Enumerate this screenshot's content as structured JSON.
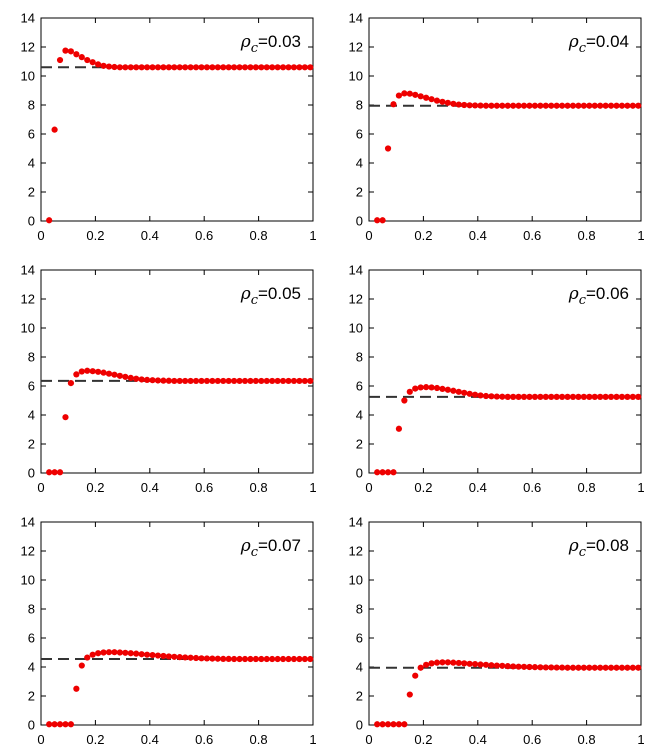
{
  "chart_data": [
    {
      "type": "scatter",
      "label_symbol": "ρ",
      "label_sub": "c",
      "label_value": "=0.03",
      "xlim": [
        0,
        1
      ],
      "ylim": [
        0,
        14
      ],
      "xticks": [
        "0",
        "0.2",
        "0.4",
        "0.6",
        "0.8",
        "1"
      ],
      "yticks": [
        "0",
        "2",
        "4",
        "6",
        "8",
        "10",
        "12",
        "14"
      ],
      "reference_line": 10.6,
      "x": [
        0.03,
        0.05,
        0.07,
        0.09,
        0.11,
        0.13,
        0.15,
        0.17,
        0.19,
        0.21,
        0.23,
        0.25,
        0.27,
        0.29,
        0.31,
        0.33,
        0.35,
        0.37,
        0.39,
        0.41,
        0.43,
        0.45,
        0.47,
        0.49,
        0.51,
        0.53,
        0.55,
        0.57,
        0.59,
        0.61,
        0.63,
        0.65,
        0.67,
        0.69,
        0.71,
        0.73,
        0.75,
        0.77,
        0.79,
        0.81,
        0.83,
        0.85,
        0.87,
        0.89,
        0.91,
        0.93,
        0.95,
        0.97,
        0.99
      ],
      "y": [
        0.05,
        6.3,
        11.1,
        11.75,
        11.7,
        11.5,
        11.3,
        11.1,
        10.95,
        10.8,
        10.7,
        10.65,
        10.62,
        10.6,
        10.6,
        10.6,
        10.6,
        10.6,
        10.6,
        10.6,
        10.6,
        10.6,
        10.6,
        10.6,
        10.6,
        10.6,
        10.6,
        10.6,
        10.6,
        10.6,
        10.6,
        10.6,
        10.6,
        10.6,
        10.6,
        10.6,
        10.6,
        10.6,
        10.6,
        10.6,
        10.6,
        10.6,
        10.6,
        10.6,
        10.6,
        10.6,
        10.6,
        10.6,
        10.6
      ],
      "colors": {
        "points": "#ee0000",
        "reference_line": "#333333"
      }
    },
    {
      "type": "scatter",
      "label_symbol": "ρ",
      "label_sub": "c",
      "label_value": "=0.04",
      "xlim": [
        0,
        1
      ],
      "ylim": [
        0,
        14
      ],
      "xticks": [
        "0",
        "0.2",
        "0.4",
        "0.6",
        "0.8",
        "1"
      ],
      "yticks": [
        "0",
        "2",
        "4",
        "6",
        "8",
        "10",
        "12",
        "14"
      ],
      "reference_line": 7.95,
      "x": [
        0.03,
        0.05,
        0.07,
        0.09,
        0.11,
        0.13,
        0.15,
        0.17,
        0.19,
        0.21,
        0.23,
        0.25,
        0.27,
        0.29,
        0.31,
        0.33,
        0.35,
        0.37,
        0.39,
        0.41,
        0.43,
        0.45,
        0.47,
        0.49,
        0.51,
        0.53,
        0.55,
        0.57,
        0.59,
        0.61,
        0.63,
        0.65,
        0.67,
        0.69,
        0.71,
        0.73,
        0.75,
        0.77,
        0.79,
        0.81,
        0.83,
        0.85,
        0.87,
        0.89,
        0.91,
        0.93,
        0.95,
        0.97,
        0.99
      ],
      "y": [
        0.05,
        0.05,
        5.0,
        8.05,
        8.65,
        8.8,
        8.78,
        8.7,
        8.6,
        8.5,
        8.4,
        8.3,
        8.22,
        8.15,
        8.08,
        8.03,
        8.0,
        7.98,
        7.97,
        7.96,
        7.95,
        7.95,
        7.95,
        7.95,
        7.95,
        7.95,
        7.95,
        7.95,
        7.95,
        7.95,
        7.95,
        7.95,
        7.95,
        7.95,
        7.95,
        7.95,
        7.95,
        7.95,
        7.95,
        7.95,
        7.95,
        7.95,
        7.95,
        7.95,
        7.95,
        7.95,
        7.95,
        7.95,
        7.95
      ],
      "colors": {
        "points": "#ee0000",
        "reference_line": "#333333"
      }
    },
    {
      "type": "scatter",
      "label_symbol": "ρ",
      "label_sub": "c",
      "label_value": "=0.05",
      "xlim": [
        0,
        1
      ],
      "ylim": [
        0,
        14
      ],
      "xticks": [
        "0",
        "0.2",
        "0.4",
        "0.6",
        "0.8",
        "1"
      ],
      "yticks": [
        "0",
        "2",
        "4",
        "6",
        "8",
        "10",
        "12",
        "14"
      ],
      "reference_line": 6.35,
      "x": [
        0.03,
        0.05,
        0.07,
        0.09,
        0.11,
        0.13,
        0.15,
        0.17,
        0.19,
        0.21,
        0.23,
        0.25,
        0.27,
        0.29,
        0.31,
        0.33,
        0.35,
        0.37,
        0.39,
        0.41,
        0.43,
        0.45,
        0.47,
        0.49,
        0.51,
        0.53,
        0.55,
        0.57,
        0.59,
        0.61,
        0.63,
        0.65,
        0.67,
        0.69,
        0.71,
        0.73,
        0.75,
        0.77,
        0.79,
        0.81,
        0.83,
        0.85,
        0.87,
        0.89,
        0.91,
        0.93,
        0.95,
        0.97,
        0.99
      ],
      "y": [
        0.05,
        0.05,
        0.05,
        3.85,
        6.2,
        6.8,
        7.0,
        7.05,
        7.02,
        6.98,
        6.92,
        6.85,
        6.78,
        6.7,
        6.63,
        6.56,
        6.5,
        6.45,
        6.42,
        6.4,
        6.38,
        6.37,
        6.36,
        6.35,
        6.35,
        6.35,
        6.35,
        6.35,
        6.35,
        6.35,
        6.35,
        6.35,
        6.35,
        6.35,
        6.35,
        6.35,
        6.35,
        6.35,
        6.35,
        6.35,
        6.35,
        6.35,
        6.35,
        6.35,
        6.35,
        6.35,
        6.35,
        6.35,
        6.35
      ],
      "colors": {
        "points": "#ee0000",
        "reference_line": "#333333"
      }
    },
    {
      "type": "scatter",
      "label_symbol": "ρ",
      "label_sub": "c",
      "label_value": "=0.06",
      "xlim": [
        0,
        1
      ],
      "ylim": [
        0,
        14
      ],
      "xticks": [
        "0",
        "0.2",
        "0.4",
        "0.6",
        "0.8",
        "1"
      ],
      "yticks": [
        "0",
        "2",
        "4",
        "6",
        "8",
        "10",
        "12",
        "14"
      ],
      "reference_line": 5.25,
      "x": [
        0.03,
        0.05,
        0.07,
        0.09,
        0.11,
        0.13,
        0.15,
        0.17,
        0.19,
        0.21,
        0.23,
        0.25,
        0.27,
        0.29,
        0.31,
        0.33,
        0.35,
        0.37,
        0.39,
        0.41,
        0.43,
        0.45,
        0.47,
        0.49,
        0.51,
        0.53,
        0.55,
        0.57,
        0.59,
        0.61,
        0.63,
        0.65,
        0.67,
        0.69,
        0.71,
        0.73,
        0.75,
        0.77,
        0.79,
        0.81,
        0.83,
        0.85,
        0.87,
        0.89,
        0.91,
        0.93,
        0.95,
        0.97,
        0.99
      ],
      "y": [
        0.05,
        0.05,
        0.05,
        0.05,
        3.05,
        5.0,
        5.6,
        5.82,
        5.9,
        5.92,
        5.9,
        5.86,
        5.8,
        5.74,
        5.67,
        5.6,
        5.53,
        5.46,
        5.4,
        5.35,
        5.31,
        5.29,
        5.27,
        5.26,
        5.25,
        5.25,
        5.25,
        5.25,
        5.25,
        5.25,
        5.25,
        5.25,
        5.25,
        5.25,
        5.25,
        5.25,
        5.25,
        5.25,
        5.25,
        5.25,
        5.25,
        5.25,
        5.25,
        5.25,
        5.25,
        5.25,
        5.25,
        5.25,
        5.25
      ],
      "colors": {
        "points": "#ee0000",
        "reference_line": "#333333"
      }
    },
    {
      "type": "scatter",
      "label_symbol": "ρ",
      "label_sub": "c",
      "label_value": "=0.07",
      "xlim": [
        0,
        1
      ],
      "ylim": [
        0,
        14
      ],
      "xticks": [
        "0",
        "0.2",
        "0.4",
        "0.6",
        "0.8",
        "1"
      ],
      "yticks": [
        "0",
        "2",
        "4",
        "6",
        "8",
        "10",
        "12",
        "14"
      ],
      "reference_line": 4.55,
      "x": [
        0.03,
        0.05,
        0.07,
        0.09,
        0.11,
        0.13,
        0.15,
        0.17,
        0.19,
        0.21,
        0.23,
        0.25,
        0.27,
        0.29,
        0.31,
        0.33,
        0.35,
        0.37,
        0.39,
        0.41,
        0.43,
        0.45,
        0.47,
        0.49,
        0.51,
        0.53,
        0.55,
        0.57,
        0.59,
        0.61,
        0.63,
        0.65,
        0.67,
        0.69,
        0.71,
        0.73,
        0.75,
        0.77,
        0.79,
        0.81,
        0.83,
        0.85,
        0.87,
        0.89,
        0.91,
        0.93,
        0.95,
        0.97,
        0.99
      ],
      "y": [
        0.05,
        0.05,
        0.05,
        0.05,
        0.05,
        2.5,
        4.1,
        4.65,
        4.85,
        4.95,
        5.0,
        5.02,
        5.02,
        5.0,
        4.98,
        4.95,
        4.92,
        4.88,
        4.85,
        4.82,
        4.79,
        4.76,
        4.73,
        4.7,
        4.68,
        4.66,
        4.64,
        4.62,
        4.6,
        4.59,
        4.58,
        4.57,
        4.56,
        4.56,
        4.55,
        4.55,
        4.55,
        4.55,
        4.55,
        4.55,
        4.55,
        4.55,
        4.55,
        4.55,
        4.55,
        4.55,
        4.55,
        4.55,
        4.55
      ],
      "colors": {
        "points": "#ee0000",
        "reference_line": "#333333"
      }
    },
    {
      "type": "scatter",
      "label_symbol": "ρ",
      "label_sub": "c",
      "label_value": "=0.08",
      "xlim": [
        0,
        1
      ],
      "ylim": [
        0,
        14
      ],
      "xticks": [
        "0",
        "0.2",
        "0.4",
        "0.6",
        "0.8",
        "1"
      ],
      "yticks": [
        "0",
        "2",
        "4",
        "6",
        "8",
        "10",
        "12",
        "14"
      ],
      "reference_line": 3.95,
      "x": [
        0.03,
        0.05,
        0.07,
        0.09,
        0.11,
        0.13,
        0.15,
        0.17,
        0.19,
        0.21,
        0.23,
        0.25,
        0.27,
        0.29,
        0.31,
        0.33,
        0.35,
        0.37,
        0.39,
        0.41,
        0.43,
        0.45,
        0.47,
        0.49,
        0.51,
        0.53,
        0.55,
        0.57,
        0.59,
        0.61,
        0.63,
        0.65,
        0.67,
        0.69,
        0.71,
        0.73,
        0.75,
        0.77,
        0.79,
        0.81,
        0.83,
        0.85,
        0.87,
        0.89,
        0.91,
        0.93,
        0.95,
        0.97,
        0.99
      ],
      "y": [
        0.05,
        0.05,
        0.05,
        0.05,
        0.05,
        0.05,
        2.1,
        3.4,
        3.95,
        4.15,
        4.25,
        4.3,
        4.32,
        4.32,
        4.3,
        4.28,
        4.25,
        4.22,
        4.2,
        4.17,
        4.15,
        4.12,
        4.1,
        4.08,
        4.06,
        4.04,
        4.02,
        4.01,
        4.0,
        3.99,
        3.98,
        3.97,
        3.97,
        3.96,
        3.96,
        3.95,
        3.95,
        3.95,
        3.95,
        3.95,
        3.95,
        3.95,
        3.95,
        3.95,
        3.95,
        3.95,
        3.95,
        3.95,
        3.95
      ],
      "colors": {
        "points": "#ee0000",
        "reference_line": "#333333"
      }
    }
  ]
}
